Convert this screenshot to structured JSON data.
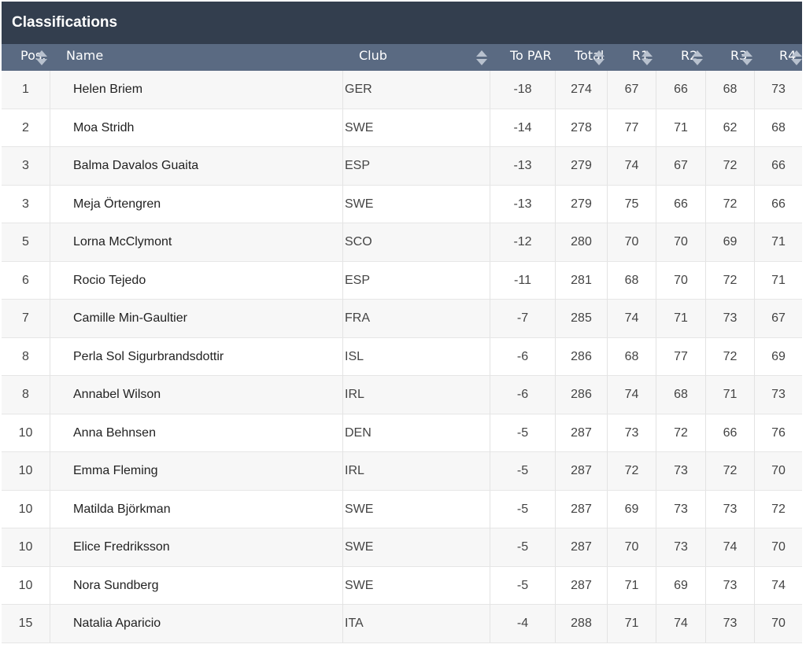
{
  "title": "Classifications",
  "columns": {
    "pos": "Pos.",
    "name": "Name",
    "club": "Club",
    "to_par": "To PAR",
    "total": "Total",
    "r1": "R1",
    "r2": "R2",
    "r3": "R3",
    "r4": "R4"
  },
  "rows": [
    {
      "pos": "1",
      "name": "Helen Briem",
      "club": "GER",
      "to_par": "-18",
      "total": "274",
      "r1": "67",
      "r2": "66",
      "r3": "68",
      "r4": "73"
    },
    {
      "pos": "2",
      "name": "Moa Stridh",
      "club": "SWE",
      "to_par": "-14",
      "total": "278",
      "r1": "77",
      "r2": "71",
      "r3": "62",
      "r4": "68"
    },
    {
      "pos": "3",
      "name": "Balma Davalos Guaita",
      "club": "ESP",
      "to_par": "-13",
      "total": "279",
      "r1": "74",
      "r2": "67",
      "r3": "72",
      "r4": "66"
    },
    {
      "pos": "3",
      "name": "Meja Örtengren",
      "club": "SWE",
      "to_par": "-13",
      "total": "279",
      "r1": "75",
      "r2": "66",
      "r3": "72",
      "r4": "66"
    },
    {
      "pos": "5",
      "name": "Lorna McClymont",
      "club": "SCO",
      "to_par": "-12",
      "total": "280",
      "r1": "70",
      "r2": "70",
      "r3": "69",
      "r4": "71"
    },
    {
      "pos": "6",
      "name": "Rocio Tejedo",
      "club": "ESP",
      "to_par": "-11",
      "total": "281",
      "r1": "68",
      "r2": "70",
      "r3": "72",
      "r4": "71"
    },
    {
      "pos": "7",
      "name": "Camille Min-Gaultier",
      "club": "FRA",
      "to_par": "-7",
      "total": "285",
      "r1": "74",
      "r2": "71",
      "r3": "73",
      "r4": "67"
    },
    {
      "pos": "8",
      "name": "Perla Sol Sigurbrandsdottir",
      "club": "ISL",
      "to_par": "-6",
      "total": "286",
      "r1": "68",
      "r2": "77",
      "r3": "72",
      "r4": "69"
    },
    {
      "pos": "8",
      "name": "Annabel Wilson",
      "club": "IRL",
      "to_par": "-6",
      "total": "286",
      "r1": "74",
      "r2": "68",
      "r3": "71",
      "r4": "73"
    },
    {
      "pos": "10",
      "name": "Anna Behnsen",
      "club": "DEN",
      "to_par": "-5",
      "total": "287",
      "r1": "73",
      "r2": "72",
      "r3": "66",
      "r4": "76"
    },
    {
      "pos": "10",
      "name": "Emma Fleming",
      "club": "IRL",
      "to_par": "-5",
      "total": "287",
      "r1": "72",
      "r2": "73",
      "r3": "72",
      "r4": "70"
    },
    {
      "pos": "10",
      "name": "Matilda Björkman",
      "club": "SWE",
      "to_par": "-5",
      "total": "287",
      "r1": "69",
      "r2": "73",
      "r3": "73",
      "r4": "72"
    },
    {
      "pos": "10",
      "name": "Elice Fredriksson",
      "club": "SWE",
      "to_par": "-5",
      "total": "287",
      "r1": "70",
      "r2": "73",
      "r3": "74",
      "r4": "70"
    },
    {
      "pos": "10",
      "name": "Nora Sundberg",
      "club": "SWE",
      "to_par": "-5",
      "total": "287",
      "r1": "71",
      "r2": "69",
      "r3": "73",
      "r4": "74"
    },
    {
      "pos": "15",
      "name": "Natalia Aparicio",
      "club": "ITA",
      "to_par": "-4",
      "total": "288",
      "r1": "71",
      "r2": "74",
      "r3": "73",
      "r4": "70"
    }
  ],
  "colors": {
    "title_bg": "#333e4e",
    "header_bg": "#5a6a82",
    "sort_icon": "#b8c1ce"
  }
}
